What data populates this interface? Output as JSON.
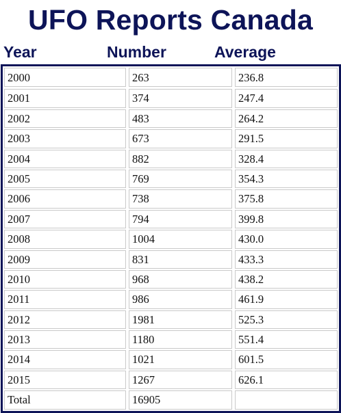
{
  "title": "UFO Reports Canada",
  "columns": {
    "year": "Year",
    "number": "Number",
    "average": "Average"
  },
  "rows": [
    {
      "year": "2000",
      "number": "263",
      "average": "236.8"
    },
    {
      "year": "2001",
      "number": "374",
      "average": "247.4"
    },
    {
      "year": "2002",
      "number": "483",
      "average": "264.2"
    },
    {
      "year": "2003",
      "number": "673",
      "average": "291.5"
    },
    {
      "year": "2004",
      "number": "882",
      "average": "328.4"
    },
    {
      "year": "2005",
      "number": "769",
      "average": "354.3"
    },
    {
      "year": "2006",
      "number": "738",
      "average": "375.8"
    },
    {
      "year": "2007",
      "number": "794",
      "average": "399.8"
    },
    {
      "year": "2008",
      "number": "1004",
      "average": "430.0"
    },
    {
      "year": "2009",
      "number": "831",
      "average": "433.3"
    },
    {
      "year": "2010",
      "number": "968",
      "average": "438.2"
    },
    {
      "year": "2011",
      "number": "986",
      "average": "461.9"
    },
    {
      "year": "2012",
      "number": "1981",
      "average": "525.3"
    },
    {
      "year": "2013",
      "number": "1180",
      "average": "551.4"
    },
    {
      "year": "2014",
      "number": "1021",
      "average": "601.5"
    },
    {
      "year": "2015",
      "number": "1267",
      "average": "626.1"
    },
    {
      "year": "Total",
      "number": "16905",
      "average": ""
    }
  ],
  "colors": {
    "title": "#0d1458",
    "frame": "#0d1458",
    "cell_border": "#c9c9c9",
    "text": "#111111"
  }
}
